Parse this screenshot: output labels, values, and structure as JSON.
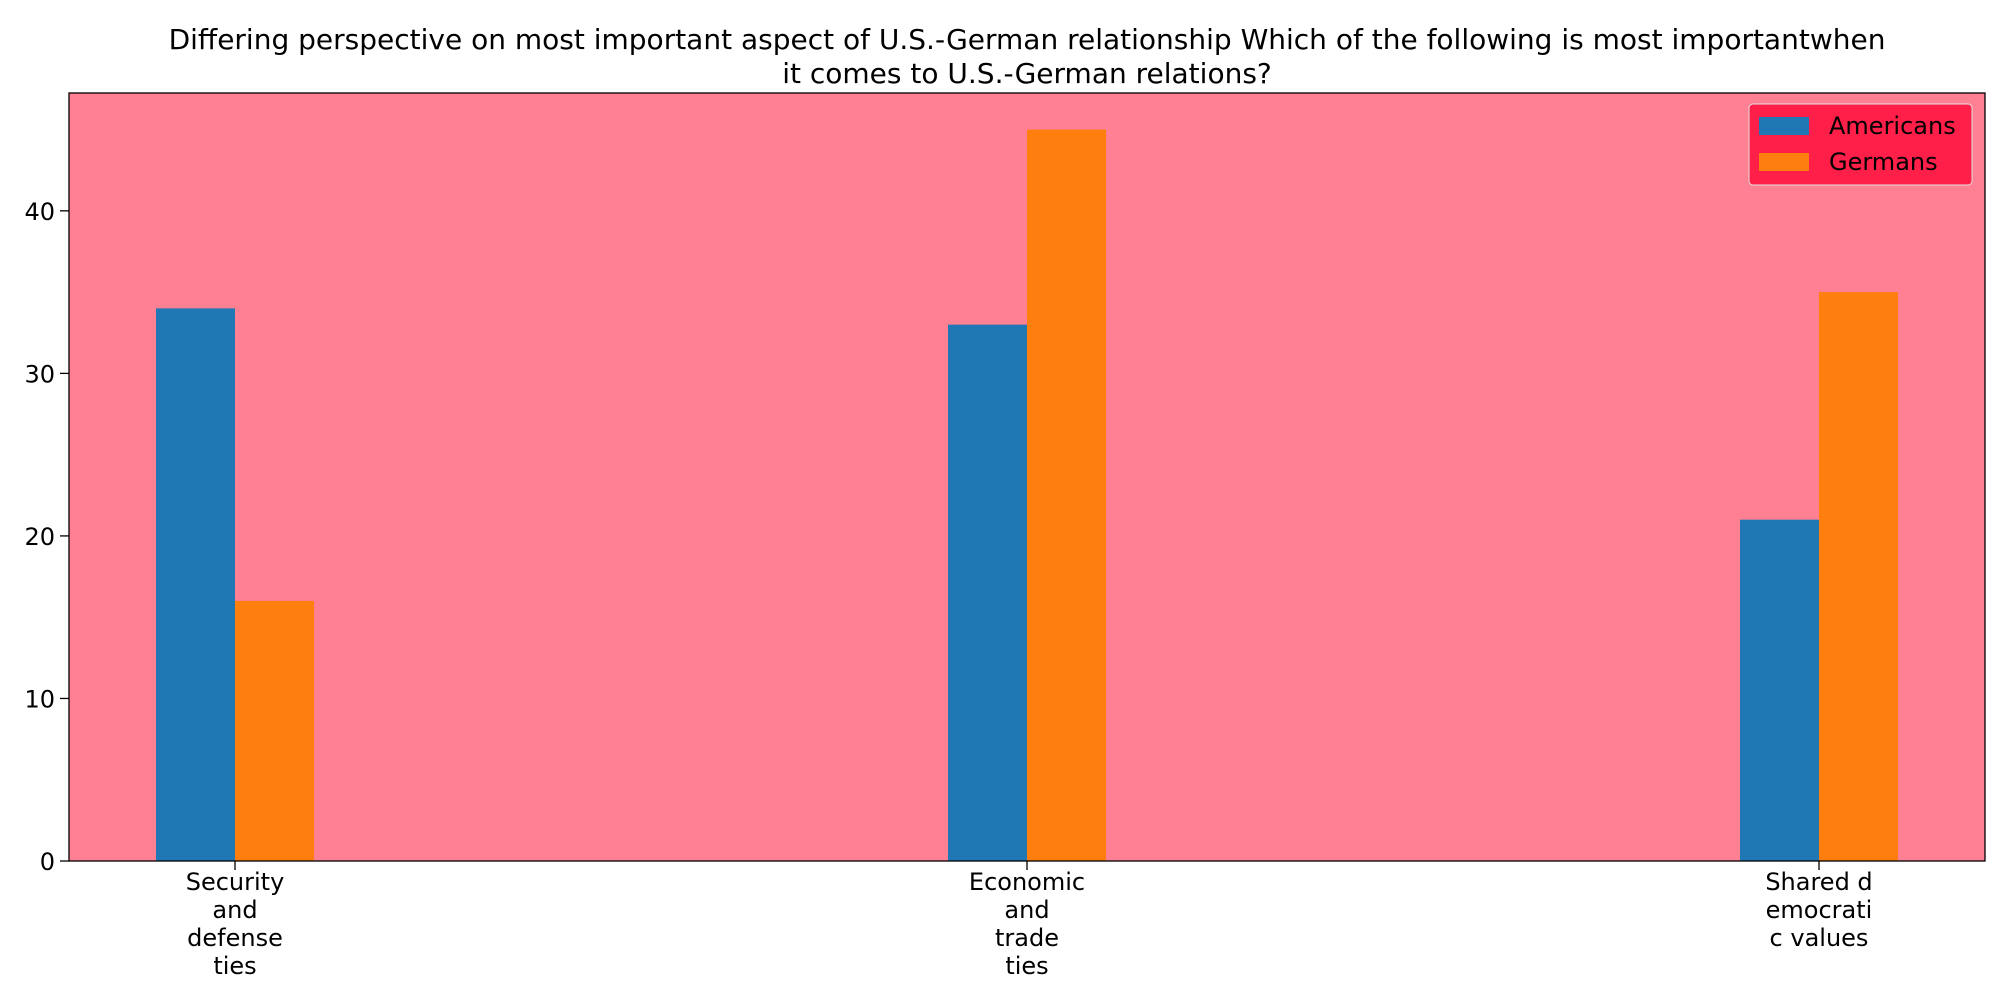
{
  "chart_data": {
    "type": "bar",
    "title_lines": [
      "Differing perspective on most important aspect of U.S.-German relationship Which of the following is most importantwhen",
      "it comes to U.S.-German relations?"
    ],
    "xlabel": "",
    "ylabel": "",
    "categories": [
      [
        "Security",
        "and",
        "defense",
        "ties"
      ],
      [
        "Economic",
        "and",
        "trade",
        "ties"
      ],
      [
        "Shared d",
        "emocrati",
        "c values"
      ]
    ],
    "series": [
      {
        "name": "Americans",
        "color": "#1f77b4",
        "values": [
          34,
          33,
          21
        ]
      },
      {
        "name": "Germans",
        "color": "#ff7f0e",
        "values": [
          16,
          45,
          35
        ]
      }
    ],
    "ylim": [
      0,
      47.25
    ],
    "yticks": [
      0,
      10,
      20,
      30,
      40
    ],
    "grid": false,
    "legend_position": "top-right",
    "plot_background": "#ff7f93",
    "legend_background": "#ff1f48"
  }
}
